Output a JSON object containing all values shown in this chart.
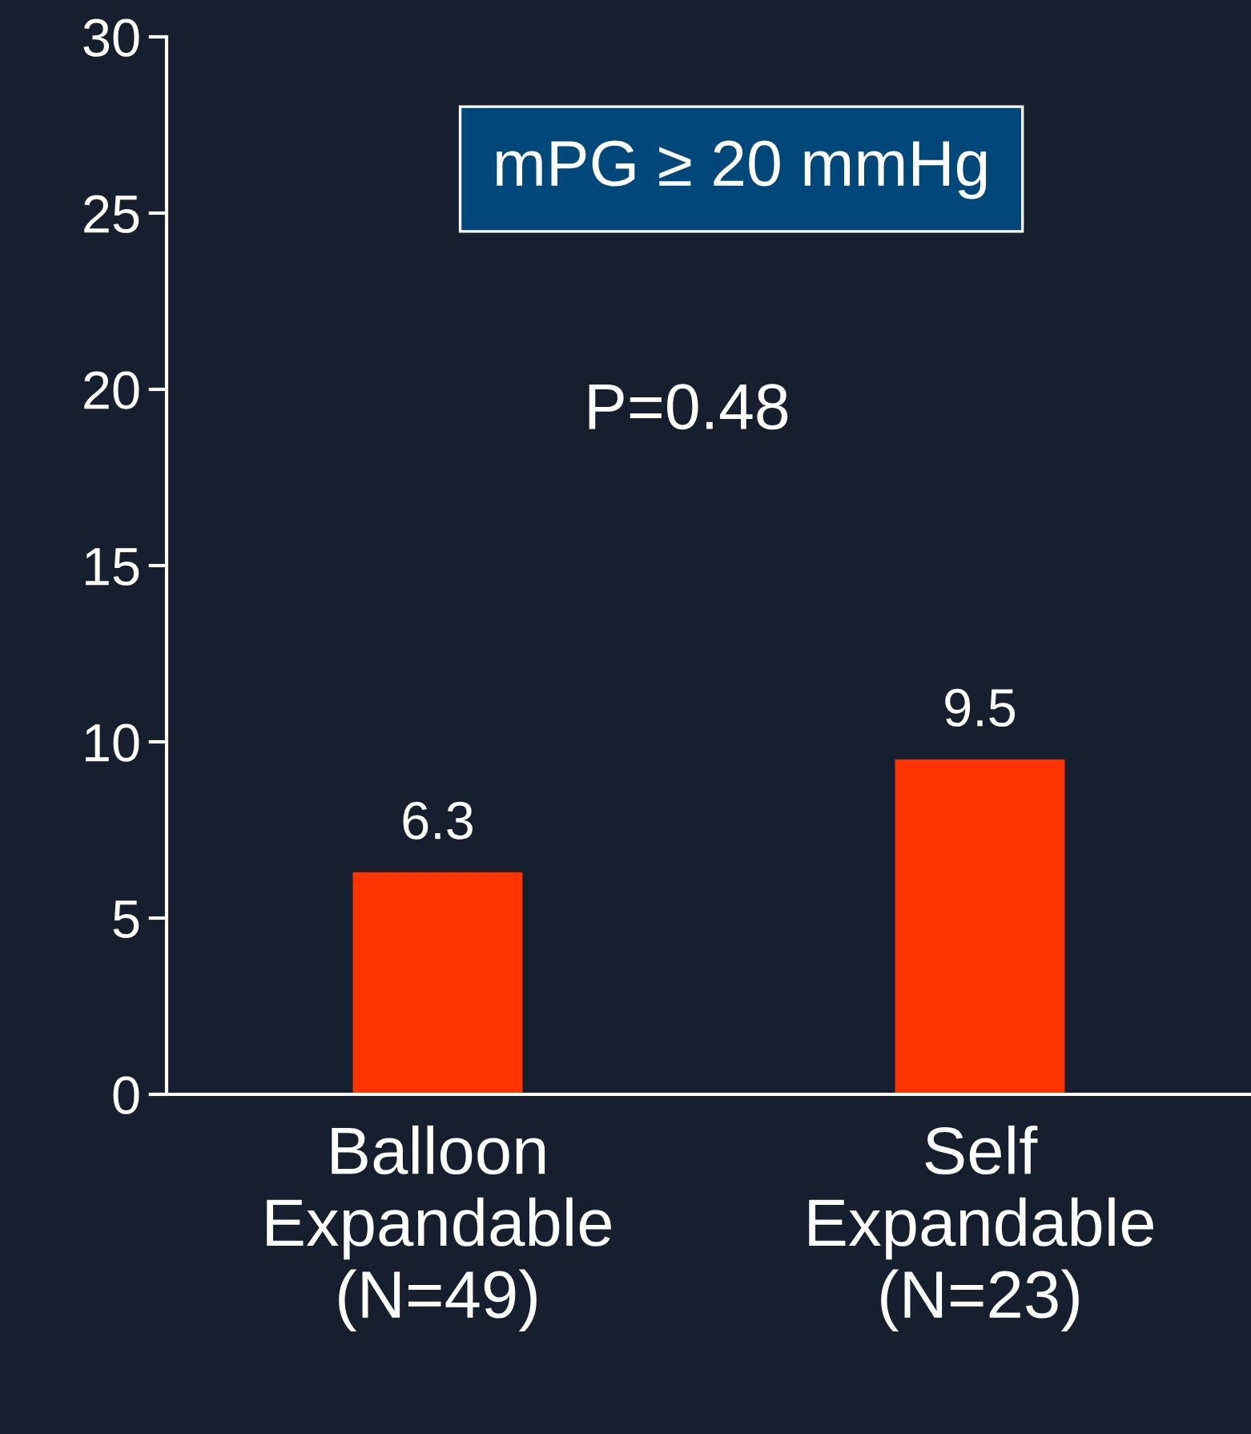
{
  "chart_data": {
    "type": "bar",
    "title": "mPG ≥ 20 mmHg",
    "categories": [
      "Balloon\nExpandable\n(N=49)",
      "Self\nExpandable\n(N=23)"
    ],
    "values": [
      6.3,
      9.5
    ],
    "color": "#ff3300",
    "ylim": [
      0,
      30
    ],
    "yticks": [
      0,
      5,
      10,
      15,
      20,
      25,
      30
    ],
    "data_labels": true,
    "grid": false,
    "annotations": [
      "P=0.48"
    ]
  }
}
